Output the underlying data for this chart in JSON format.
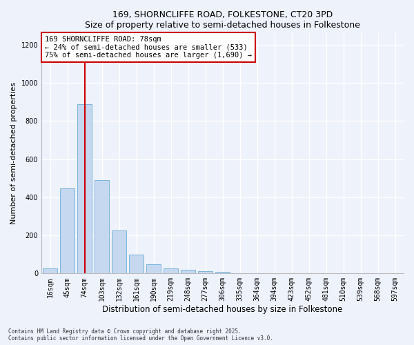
{
  "title_line1": "169, SHORNCLIFFE ROAD, FOLKESTONE, CT20 3PD",
  "title_line2": "Size of property relative to semi-detached houses in Folkestone",
  "xlabel": "Distribution of semi-detached houses by size in Folkestone",
  "ylabel": "Number of semi-detached properties",
  "categories": [
    "16sqm",
    "45sqm",
    "74sqm",
    "103sqm",
    "132sqm",
    "161sqm",
    "190sqm",
    "219sqm",
    "248sqm",
    "277sqm",
    "306sqm",
    "335sqm",
    "364sqm",
    "394sqm",
    "423sqm",
    "452sqm",
    "481sqm",
    "510sqm",
    "539sqm",
    "568sqm",
    "597sqm"
  ],
  "values": [
    25,
    445,
    890,
    490,
    225,
    100,
    50,
    25,
    20,
    12,
    8,
    0,
    0,
    0,
    0,
    0,
    0,
    0,
    0,
    0,
    0
  ],
  "bar_color": "#c5d8f0",
  "bar_edge_color": "#6aaed6",
  "vline_position": 2.0,
  "vline_color": "#cc0000",
  "annotation_text": "169 SHORNCLIFFE ROAD: 78sqm\n← 24% of semi-detached houses are smaller (533)\n75% of semi-detached houses are larger (1,690) →",
  "annotation_box_facecolor": "#ffffff",
  "annotation_box_edgecolor": "#cc0000",
  "ylim_max": 1260,
  "yticks": [
    0,
    200,
    400,
    600,
    800,
    1000,
    1200
  ],
  "background_color": "#eef2fb",
  "grid_color": "#ffffff",
  "footer_line1": "Contains HM Land Registry data © Crown copyright and database right 2025.",
  "footer_line2": "Contains public sector information licensed under the Open Government Licence v3.0."
}
